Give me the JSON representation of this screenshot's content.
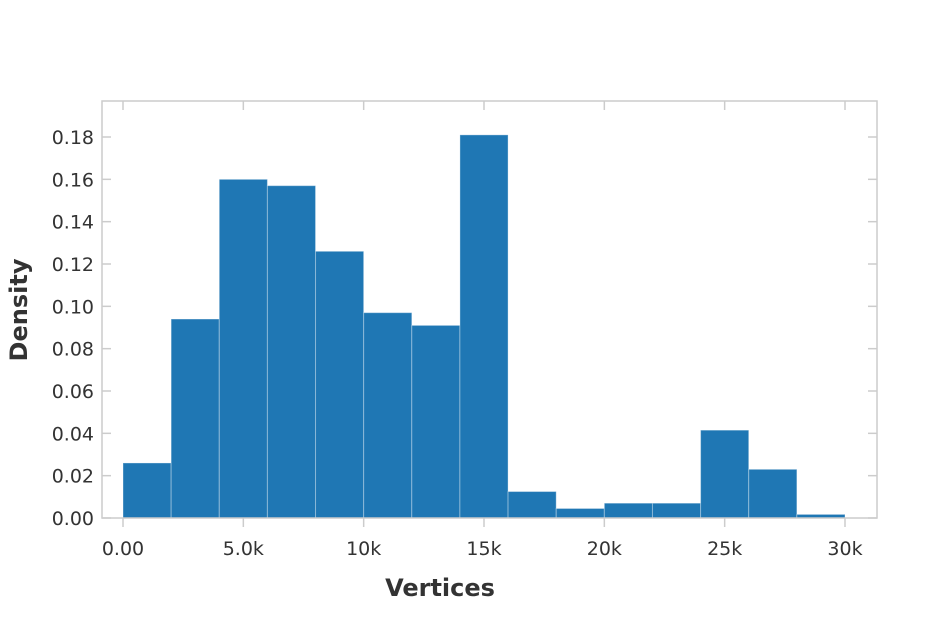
{
  "chart_data": {
    "type": "bar",
    "subtype": "histogram",
    "xlabel": "Vertices",
    "ylabel": "Density",
    "xlim": [
      0,
      30000
    ],
    "ylim": [
      0,
      0.18
    ],
    "x_ticks": [
      {
        "value": 0,
        "label": "0.00"
      },
      {
        "value": 5000,
        "label": "5.0k"
      },
      {
        "value": 10000,
        "label": "10k"
      },
      {
        "value": 15000,
        "label": "15k"
      },
      {
        "value": 20000,
        "label": "20k"
      },
      {
        "value": 25000,
        "label": "25k"
      },
      {
        "value": 30000,
        "label": "30k"
      }
    ],
    "y_ticks": [
      {
        "value": 0.0,
        "label": "0.00"
      },
      {
        "value": 0.02,
        "label": "0.02"
      },
      {
        "value": 0.04,
        "label": "0.04"
      },
      {
        "value": 0.06,
        "label": "0.06"
      },
      {
        "value": 0.08,
        "label": "0.08"
      },
      {
        "value": 0.1,
        "label": "0.10"
      },
      {
        "value": 0.12,
        "label": "0.12"
      },
      {
        "value": 0.14,
        "label": "0.14"
      },
      {
        "value": 0.16,
        "label": "0.16"
      },
      {
        "value": 0.18,
        "label": "0.18"
      }
    ],
    "bins": [
      {
        "x0": 0,
        "x1": 2000,
        "value": 0.026
      },
      {
        "x0": 2000,
        "x1": 4000,
        "value": 0.094
      },
      {
        "x0": 4000,
        "x1": 6000,
        "value": 0.16
      },
      {
        "x0": 6000,
        "x1": 8000,
        "value": 0.157
      },
      {
        "x0": 8000,
        "x1": 10000,
        "value": 0.126
      },
      {
        "x0": 10000,
        "x1": 12000,
        "value": 0.097
      },
      {
        "x0": 12000,
        "x1": 14000,
        "value": 0.091
      },
      {
        "x0": 14000,
        "x1": 16000,
        "value": 0.181
      },
      {
        "x0": 16000,
        "x1": 18000,
        "value": 0.0125
      },
      {
        "x0": 18000,
        "x1": 20000,
        "value": 0.0045
      },
      {
        "x0": 20000,
        "x1": 22000,
        "value": 0.007
      },
      {
        "x0": 22000,
        "x1": 24000,
        "value": 0.007
      },
      {
        "x0": 24000,
        "x1": 26000,
        "value": 0.0415
      },
      {
        "x0": 26000,
        "x1": 28000,
        "value": 0.023
      },
      {
        "x0": 28000,
        "x1": 30000,
        "value": 0.0017
      }
    ],
    "grid": false,
    "bar_color": "#1f77b4",
    "bar_stroke_color": "#ffffff",
    "axis_color": "#cccccc",
    "text_color": "#333333"
  }
}
